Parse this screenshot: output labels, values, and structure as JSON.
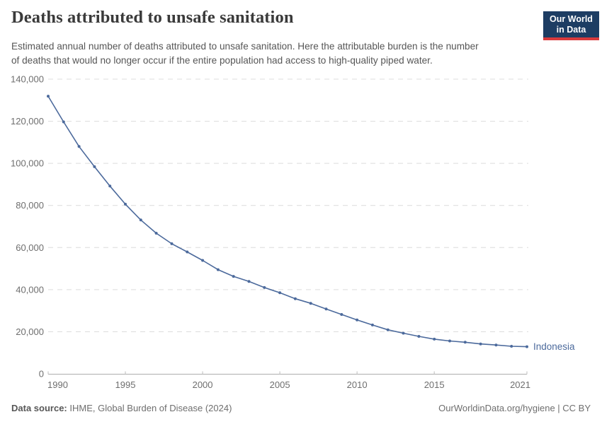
{
  "header": {
    "subtitle_lines": [
      "Estimated annual number of deaths attributed to unsafe sanitation. Here the attributable burden is the number",
      "of deaths that would no longer occur if the entire population had access to high-quality piped water."
    ]
  },
  "logo": {
    "line1": "Our World",
    "line2": "in Data",
    "bg": "#1d3d63",
    "stripe": "#d93a3c"
  },
  "chart_data": {
    "type": "line",
    "title": "Deaths attributed to unsafe sanitation",
    "xlabel": "",
    "ylabel": "",
    "x": [
      1990,
      1991,
      1992,
      1993,
      1994,
      1995,
      1996,
      1997,
      1998,
      1999,
      2000,
      2001,
      2002,
      2003,
      2004,
      2005,
      2006,
      2007,
      2008,
      2009,
      2010,
      2011,
      2012,
      2013,
      2014,
      2015,
      2016,
      2017,
      2018,
      2019,
      2020,
      2021
    ],
    "series": [
      {
        "name": "Indonesia",
        "color": "#4C6A9C",
        "values": [
          131900,
          119700,
          108000,
          98400,
          89200,
          80600,
          73100,
          66800,
          61800,
          57900,
          53900,
          49500,
          46300,
          43900,
          41000,
          38500,
          35700,
          33500,
          30800,
          28200,
          25600,
          23200,
          20900,
          19300,
          17800,
          16500,
          15600,
          15000,
          14200,
          13700,
          13100,
          12900
        ]
      }
    ],
    "xticks": [
      1990,
      1995,
      2000,
      2005,
      2010,
      2015,
      2021
    ],
    "yticks": [
      0,
      20000,
      40000,
      60000,
      80000,
      100000,
      120000,
      140000
    ],
    "ylim": [
      0,
      140000
    ],
    "xlim": [
      1990,
      2021
    ],
    "grid": "horizontal-dashed",
    "legend": "line-end-label",
    "grid_color": "#dcdcdc",
    "axis_color": "#adadad",
    "tick_label_color": "#6e6e6e"
  },
  "footer": {
    "source_label": "Data source:",
    "source_value": " IHME, Global Burden of Disease (2024)",
    "license": "OurWorldinData.org/hygiene | CC BY"
  }
}
